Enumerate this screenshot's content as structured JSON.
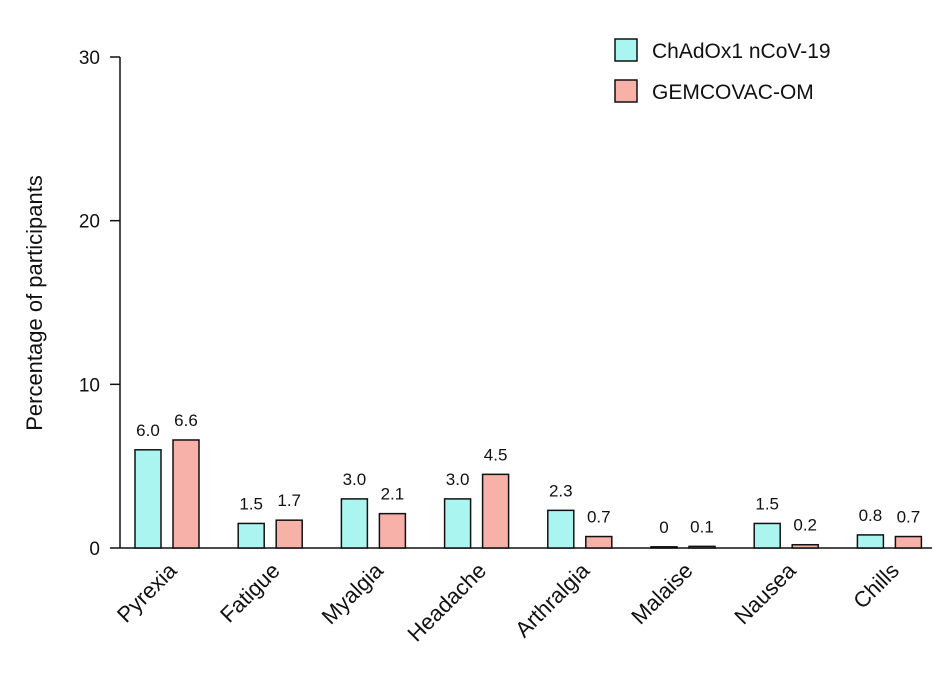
{
  "chart_data": {
    "type": "bar",
    "categories": [
      "Pyrexia",
      "Fatigue",
      "Myalgia",
      "Headache",
      "Arthralgia",
      "Malaise",
      "Nausea",
      "Chills"
    ],
    "series": [
      {
        "name": "ChAdOx1 nCoV-19",
        "color": "#aaf5f0",
        "values": [
          6.0,
          1.5,
          3.0,
          3.0,
          2.3,
          0,
          1.5,
          0.8
        ],
        "labels": [
          "6.0",
          "1.5",
          "3.0",
          "3.0",
          "2.3",
          "0",
          "1.5",
          "0.8"
        ]
      },
      {
        "name": "GEMCOVAC-OM",
        "color": "#f7b1a8",
        "values": [
          6.6,
          1.7,
          2.1,
          4.5,
          0.7,
          0.1,
          0.2,
          0.7
        ],
        "labels": [
          "6.6",
          "1.7",
          "2.1",
          "4.5",
          "0.7",
          "0.1",
          "0.2",
          "0.7"
        ]
      }
    ],
    "title": "",
    "xlabel": "",
    "ylabel": "Percentage of participants",
    "ylim": [
      0,
      30
    ],
    "yticks": [
      "0",
      "10",
      "20",
      "30"
    ],
    "grid": false,
    "legend_position": "top-right"
  }
}
